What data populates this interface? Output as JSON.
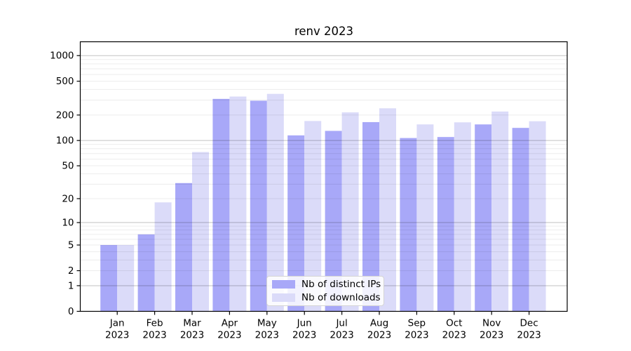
{
  "chart_data": {
    "type": "bar",
    "title": "renv 2023",
    "xlabel": "",
    "ylabel": "",
    "categories": [
      "Jan",
      "Feb",
      "Mar",
      "Apr",
      "May",
      "Jun",
      "Jul",
      "Aug",
      "Sep",
      "Oct",
      "Nov",
      "Dec"
    ],
    "category_year": "2023",
    "series": [
      {
        "name": "Nb of distinct IPs",
        "color": "#a8a8f8",
        "values": [
          5,
          7,
          31,
          310,
          295,
          115,
          130,
          165,
          107,
          110,
          155,
          141
        ]
      },
      {
        "name": "Nb of downloads",
        "color": "#dbdbf9",
        "values": [
          5,
          18,
          73,
          330,
          355,
          170,
          215,
          240,
          155,
          164,
          220,
          169
        ]
      }
    ],
    "yscale": "log1p",
    "ylim": [
      0,
      1500
    ],
    "yticks": [
      0,
      1,
      2,
      5,
      10,
      20,
      50,
      100,
      200,
      500,
      1000
    ],
    "minor_grid_values": [
      2,
      3,
      4,
      5,
      6,
      7,
      8,
      9,
      20,
      30,
      40,
      50,
      60,
      70,
      80,
      90,
      200,
      300,
      400,
      500,
      600,
      700,
      800,
      900
    ],
    "major_grid_values": [
      1,
      10,
      100,
      1000
    ],
    "grid": "horizontal",
    "legend_position": "lower-center-inside",
    "axis_color": "#000000",
    "major_grid_color": "#c3c3c3",
    "minor_grid_color": "#ececec"
  }
}
